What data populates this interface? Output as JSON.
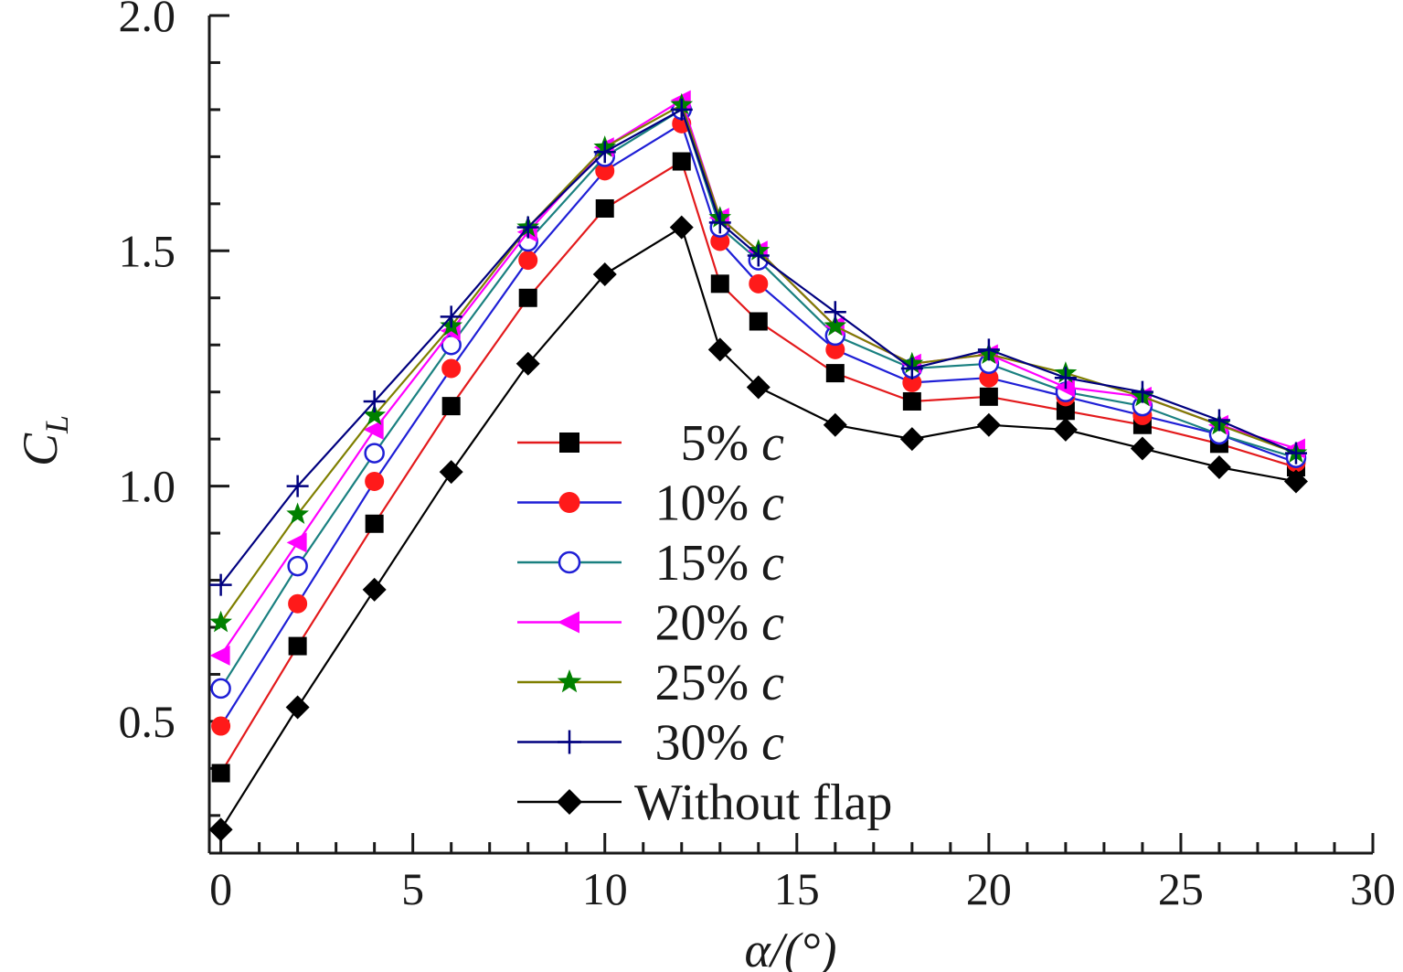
{
  "chart_data": {
    "type": "line",
    "title": "",
    "xlabel": "α/(°)",
    "ylabel": "C",
    "ylabel_subscript": "L",
    "xlim": [
      -0.3,
      30
    ],
    "ylim": [
      0.22,
      2.0
    ],
    "xticks": [
      0,
      5,
      10,
      15,
      20,
      25,
      30
    ],
    "xtick_labels": [
      "0",
      "5",
      "10",
      "15",
      "20",
      "25",
      "30"
    ],
    "yticks": [
      0.5,
      1.0,
      1.5,
      2.0
    ],
    "ytick_labels": [
      "0.5",
      "1.0",
      "1.5",
      "2.0"
    ],
    "grid": false,
    "legend_position": "center",
    "x": [
      0,
      2,
      4,
      6,
      8,
      10,
      12,
      13,
      14,
      16,
      18,
      20,
      22,
      24,
      26,
      28
    ],
    "series": [
      {
        "name": "5%",
        "unit": "c",
        "color": "#e31a1c",
        "marker": "square",
        "marker_color": "#000000",
        "marker_filled": true,
        "values": [
          0.39,
          0.66,
          0.92,
          1.17,
          1.4,
          1.59,
          1.69,
          1.43,
          1.35,
          1.24,
          1.18,
          1.19,
          1.16,
          1.13,
          1.09,
          1.04
        ]
      },
      {
        "name": "10%",
        "unit": "c",
        "color": "#1f1fd6",
        "marker": "circle",
        "marker_color": "#ff1a1a",
        "marker_filled": true,
        "values": [
          0.49,
          0.75,
          1.01,
          1.25,
          1.48,
          1.67,
          1.77,
          1.52,
          1.43,
          1.29,
          1.22,
          1.23,
          1.19,
          1.15,
          1.11,
          1.05
        ]
      },
      {
        "name": "15%",
        "unit": "c",
        "color": "#1a8080",
        "marker": "circle",
        "marker_color": "#1f1fd6",
        "marker_filled": false,
        "values": [
          0.57,
          0.83,
          1.07,
          1.3,
          1.52,
          1.7,
          1.8,
          1.55,
          1.48,
          1.32,
          1.25,
          1.26,
          1.2,
          1.17,
          1.11,
          1.06
        ]
      },
      {
        "name": "20%",
        "unit": "c",
        "color": "#ff00ff",
        "marker": "triangle-left",
        "marker_color": "#ff00ff",
        "marker_filled": true,
        "values": [
          0.64,
          0.88,
          1.12,
          1.33,
          1.54,
          1.72,
          1.82,
          1.57,
          1.5,
          1.34,
          1.26,
          1.28,
          1.21,
          1.19,
          1.13,
          1.08
        ]
      },
      {
        "name": "25%",
        "unit": "c",
        "color": "#7f7f00",
        "marker": "star",
        "marker_color": "#008000",
        "marker_filled": true,
        "values": [
          0.71,
          0.94,
          1.15,
          1.34,
          1.55,
          1.72,
          1.81,
          1.57,
          1.5,
          1.34,
          1.26,
          1.28,
          1.24,
          1.19,
          1.13,
          1.07
        ]
      },
      {
        "name": "30%",
        "unit": "c",
        "color": "#00007f",
        "marker": "plus",
        "marker_color": "#00007f",
        "marker_filled": false,
        "values": [
          0.79,
          1.0,
          1.18,
          1.36,
          1.55,
          1.71,
          1.8,
          1.56,
          1.49,
          1.37,
          1.25,
          1.29,
          1.23,
          1.2,
          1.14,
          1.07
        ]
      },
      {
        "name": "Without flap",
        "unit": "",
        "color": "#000000",
        "marker": "diamond",
        "marker_color": "#000000",
        "marker_filled": true,
        "values": [
          0.27,
          0.53,
          0.78,
          1.03,
          1.26,
          1.45,
          1.55,
          1.29,
          1.21,
          1.13,
          1.1,
          1.13,
          1.12,
          1.08,
          1.04,
          1.01
        ]
      }
    ]
  }
}
